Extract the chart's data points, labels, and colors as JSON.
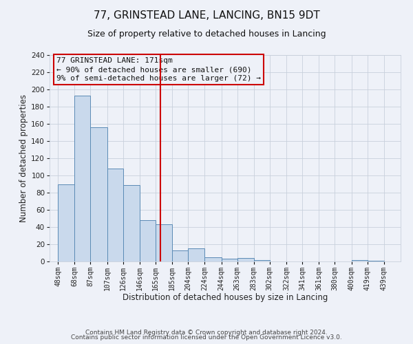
{
  "title": "77, GRINSTEAD LANE, LANCING, BN15 9DT",
  "subtitle": "Size of property relative to detached houses in Lancing",
  "xlabel": "Distribution of detached houses by size in Lancing",
  "ylabel": "Number of detached properties",
  "footer_line1": "Contains HM Land Registry data © Crown copyright and database right 2024.",
  "footer_line2": "Contains public sector information licensed under the Open Government Licence v3.0.",
  "annotation_line1": "77 GRINSTEAD LANE: 171sqm",
  "annotation_line2": "← 90% of detached houses are smaller (690)",
  "annotation_line3": "9% of semi-detached houses are larger (72) →",
  "bar_left_edges": [
    48,
    68,
    87,
    107,
    126,
    146,
    165,
    185,
    204,
    224,
    244,
    263,
    283,
    302,
    322,
    341,
    361,
    380,
    400,
    419
  ],
  "bar_heights": [
    90,
    193,
    156,
    108,
    89,
    48,
    43,
    13,
    15,
    5,
    3,
    4,
    2,
    0,
    0,
    0,
    0,
    0,
    2,
    1
  ],
  "bar_widths": [
    20,
    19,
    20,
    19,
    20,
    19,
    20,
    19,
    20,
    20,
    19,
    20,
    19,
    20,
    19,
    20,
    19,
    20,
    19,
    20
  ],
  "tick_labels": [
    "48sqm",
    "68sqm",
    "87sqm",
    "107sqm",
    "126sqm",
    "146sqm",
    "165sqm",
    "185sqm",
    "204sqm",
    "224sqm",
    "244sqm",
    "263sqm",
    "283sqm",
    "302sqm",
    "322sqm",
    "341sqm",
    "361sqm",
    "380sqm",
    "400sqm",
    "419sqm",
    "439sqm"
  ],
  "tick_positions": [
    48,
    68,
    87,
    107,
    126,
    146,
    165,
    185,
    204,
    224,
    244,
    263,
    283,
    302,
    322,
    341,
    361,
    380,
    400,
    419,
    439
  ],
  "property_line_x": 171,
  "ylim": [
    0,
    240
  ],
  "xlim": [
    38,
    459
  ],
  "bar_color": "#c9d9ec",
  "bar_edge_color": "#5a8ab5",
  "line_color": "#cc0000",
  "annotation_box_color": "#cc0000",
  "grid_color": "#c8d0dc",
  "background_color": "#eef1f8",
  "title_fontsize": 11,
  "subtitle_fontsize": 9,
  "axis_label_fontsize": 8.5,
  "tick_fontsize": 7,
  "annotation_fontsize": 8,
  "footer_fontsize": 6.5
}
